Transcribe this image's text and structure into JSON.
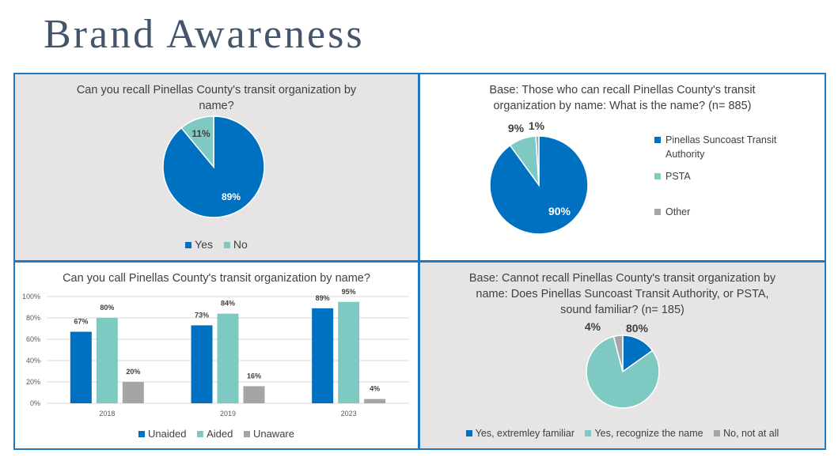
{
  "page_title": "Brand Awareness",
  "colors": {
    "blue": "#0070c0",
    "teal": "#7ecac3",
    "grey": "#a5a5a5",
    "panel_border": "#1f78c0",
    "title": "#44546a"
  },
  "chart_data": [
    {
      "type": "pie",
      "title": "Can you recall Pinellas County's transit organization by name?",
      "slices": [
        {
          "name": "Yes",
          "value": 89,
          "label": "89%",
          "color": "#0070c0"
        },
        {
          "name": "No",
          "value": 11,
          "label": "11%",
          "color": "#7ecac3"
        }
      ],
      "legend": "bottom"
    },
    {
      "type": "pie",
      "title": "Base: Those who can recall Pinellas County's transit organization by name: What is the name? (n= 885)",
      "slices": [
        {
          "name": "Pinellas Suncoast Transit Authority",
          "value": 90,
          "label": "90%",
          "color": "#0070c0"
        },
        {
          "name": "PSTA",
          "value": 9,
          "label": "9%",
          "color": "#7ecac3"
        },
        {
          "name": "Other",
          "value": 1,
          "label": "1%",
          "color": "#a5a5a5"
        }
      ],
      "legend": "right"
    },
    {
      "type": "bar",
      "title": "Can you call Pinellas County's transit organization by name?",
      "categories": [
        "2018",
        "2019",
        "2023"
      ],
      "series": [
        {
          "name": "Unaided",
          "values": [
            67,
            73,
            89
          ],
          "labels": [
            "67%",
            "73%",
            "89%"
          ],
          "color": "#0070c0"
        },
        {
          "name": "Aided",
          "values": [
            80,
            84,
            95
          ],
          "labels": [
            "80%",
            "84%",
            "95%"
          ],
          "color": "#7ecac3"
        },
        {
          "name": "Unaware",
          "values": [
            20,
            16,
            4
          ],
          "labels": [
            "20%",
            "16%",
            "4%"
          ],
          "color": "#a5a5a5"
        }
      ],
      "ylim": [
        0,
        100
      ],
      "yticks": [
        "0%",
        "20%",
        "40%",
        "60%",
        "80%",
        "100%"
      ],
      "grid": true,
      "legend": "bottom"
    },
    {
      "type": "pie",
      "title": "Base: Cannot recall Pinellas County's transit organization by name: Does Pinellas Suncoast Transit Authority, or PSTA, sound familiar? (n= 185)",
      "slices": [
        {
          "name": "Yes, extremley familiar",
          "value": 15,
          "label": "15%",
          "color": "#0070c0"
        },
        {
          "name": "Yes, recognize the name",
          "value": 80,
          "label": "80%",
          "color": "#7ecac3"
        },
        {
          "name": "No, not at all",
          "value": 4,
          "label": "4%",
          "color": "#a5a5a5"
        }
      ],
      "legend": "bottom"
    }
  ]
}
